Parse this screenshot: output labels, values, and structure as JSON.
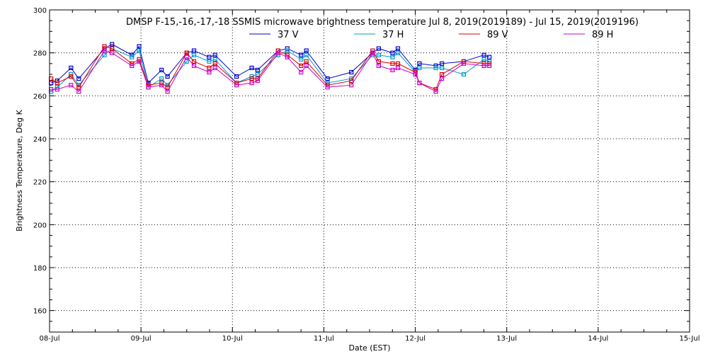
{
  "chart_data": {
    "type": "line",
    "title": "DMSP F-15,-16,-17,-18 SSMIS microwave brightness temperature Jul  8, 2019(2019189) - Jul 15, 2019(2019196)",
    "xlabel": "Date (EST)",
    "ylabel": "Brightness Temperature, Deg K",
    "xlim": [
      "2019-07-08T00:00",
      "2019-07-15T00:00"
    ],
    "ylim": [
      150,
      300
    ],
    "x_tick_labels": [
      "08-Jul",
      "09-Jul",
      "10-Jul",
      "11-Jul",
      "12-Jul",
      "13-Jul",
      "14-Jul",
      "15-Jul"
    ],
    "y_ticks": [
      160,
      180,
      200,
      220,
      240,
      260,
      280,
      300
    ],
    "grid": true,
    "legend_position": "top",
    "series": [
      {
        "name": "37 V",
        "color": "#0000cc",
        "points": [
          [
            "2019-07-08T00:24",
            266
          ],
          [
            "2019-07-08T02:00",
            267
          ],
          [
            "2019-07-08T05:38",
            273
          ],
          [
            "2019-07-08T07:41",
            268
          ],
          [
            "2019-07-08T14:24",
            282
          ],
          [
            "2019-07-08T16:24",
            284
          ],
          [
            "2019-07-08T21:36",
            279
          ],
          [
            "2019-07-08T23:31",
            283
          ],
          [
            "2019-07-09T01:55",
            266
          ],
          [
            "2019-07-09T05:24",
            272
          ],
          [
            "2019-07-09T06:58",
            269
          ],
          [
            "2019-07-09T12:00",
            280
          ],
          [
            "2019-07-09T13:55",
            281
          ],
          [
            "2019-07-09T17:53",
            278
          ],
          [
            "2019-07-09T19:26",
            279
          ],
          [
            "2019-07-10T01:05",
            269
          ],
          [
            "2019-07-10T05:05",
            273
          ],
          [
            "2019-07-10T06:36",
            272
          ],
          [
            "2019-07-10T12:00",
            281
          ],
          [
            "2019-07-10T14:24",
            282
          ],
          [
            "2019-07-10T18:02",
            279
          ],
          [
            "2019-07-10T19:24",
            281
          ],
          [
            "2019-07-11T00:58",
            268
          ],
          [
            "2019-07-11T07:12",
            271
          ],
          [
            "2019-07-11T12:48",
            280
          ],
          [
            "2019-07-11T14:24",
            282
          ],
          [
            "2019-07-11T18:02",
            280
          ],
          [
            "2019-07-11T19:26",
            282
          ],
          [
            "2019-07-12T00:00",
            272
          ],
          [
            "2019-07-12T01:05",
            275
          ],
          [
            "2019-07-12T05:24",
            274
          ],
          [
            "2019-07-12T06:58",
            275
          ],
          [
            "2019-07-12T12:43",
            276
          ],
          [
            "2019-07-12T18:02",
            279
          ],
          [
            "2019-07-12T19:26",
            278
          ]
        ]
      },
      {
        "name": "37 H",
        "color": "#0099cc",
        "points": [
          [
            "2019-07-08T00:24",
            262
          ],
          [
            "2019-07-08T02:00",
            264
          ],
          [
            "2019-07-08T05:38",
            270
          ],
          [
            "2019-07-08T07:41",
            265
          ],
          [
            "2019-07-08T14:24",
            279
          ],
          [
            "2019-07-08T16:24",
            282
          ],
          [
            "2019-07-08T21:36",
            278
          ],
          [
            "2019-07-08T23:31",
            281
          ],
          [
            "2019-07-09T01:55",
            264
          ],
          [
            "2019-07-09T05:24",
            268
          ],
          [
            "2019-07-09T06:58",
            265
          ],
          [
            "2019-07-09T12:00",
            276
          ],
          [
            "2019-07-09T13:55",
            279
          ],
          [
            "2019-07-09T17:53",
            276
          ],
          [
            "2019-07-09T19:26",
            277
          ],
          [
            "2019-07-10T01:05",
            266
          ],
          [
            "2019-07-10T05:05",
            269
          ],
          [
            "2019-07-10T06:36",
            270
          ],
          [
            "2019-07-10T12:00",
            279
          ],
          [
            "2019-07-10T14:24",
            281
          ],
          [
            "2019-07-10T18:02",
            277
          ],
          [
            "2019-07-10T19:24",
            279
          ],
          [
            "2019-07-11T00:58",
            266
          ],
          [
            "2019-07-11T07:12",
            268
          ],
          [
            "2019-07-11T12:48",
            279
          ],
          [
            "2019-07-11T14:24",
            279
          ],
          [
            "2019-07-11T18:02",
            278
          ],
          [
            "2019-07-11T19:26",
            280
          ],
          [
            "2019-07-12T00:00",
            271
          ],
          [
            "2019-07-12T01:05",
            273
          ],
          [
            "2019-07-12T05:24",
            273
          ],
          [
            "2019-07-12T06:58",
            273
          ],
          [
            "2019-07-12T12:43",
            270
          ],
          [
            "2019-07-12T18:02",
            277
          ],
          [
            "2019-07-12T19:26",
            276
          ]
        ]
      },
      {
        "name": "89 V",
        "color": "#dd0000",
        "points": [
          [
            "2019-07-08T00:24",
            268
          ],
          [
            "2019-07-08T02:00",
            266
          ],
          [
            "2019-07-08T05:38",
            269
          ],
          [
            "2019-07-08T07:41",
            264
          ],
          [
            "2019-07-08T14:24",
            283
          ],
          [
            "2019-07-08T16:24",
            282
          ],
          [
            "2019-07-08T21:36",
            275
          ],
          [
            "2019-07-08T23:31",
            277
          ],
          [
            "2019-07-09T01:55",
            265
          ],
          [
            "2019-07-09T05:24",
            266
          ],
          [
            "2019-07-09T06:58",
            264
          ],
          [
            "2019-07-09T12:00",
            280
          ],
          [
            "2019-07-09T13:55",
            276
          ],
          [
            "2019-07-09T17:53",
            273
          ],
          [
            "2019-07-09T19:26",
            275
          ],
          [
            "2019-07-10T01:05",
            266
          ],
          [
            "2019-07-10T05:05",
            268
          ],
          [
            "2019-07-10T06:36",
            268
          ],
          [
            "2019-07-10T12:00",
            281
          ],
          [
            "2019-07-10T14:24",
            279
          ],
          [
            "2019-07-10T18:02",
            274
          ],
          [
            "2019-07-10T19:24",
            276
          ],
          [
            "2019-07-11T00:58",
            265
          ],
          [
            "2019-07-11T07:12",
            267
          ],
          [
            "2019-07-11T12:48",
            281
          ],
          [
            "2019-07-11T14:24",
            276
          ],
          [
            "2019-07-11T18:02",
            275
          ],
          [
            "2019-07-11T19:26",
            275
          ],
          [
            "2019-07-12T00:00",
            271
          ],
          [
            "2019-07-12T01:05",
            266
          ],
          [
            "2019-07-12T05:24",
            263
          ],
          [
            "2019-07-12T06:58",
            270
          ],
          [
            "2019-07-12T12:43",
            276
          ],
          [
            "2019-07-12T18:02",
            275
          ],
          [
            "2019-07-12T19:26",
            275
          ]
        ]
      },
      {
        "name": "89 H",
        "color": "#cc00cc",
        "points": [
          [
            "2019-07-08T00:24",
            263
          ],
          [
            "2019-07-08T02:00",
            263
          ],
          [
            "2019-07-08T05:38",
            265
          ],
          [
            "2019-07-08T07:41",
            262
          ],
          [
            "2019-07-08T14:24",
            281
          ],
          [
            "2019-07-08T16:24",
            280
          ],
          [
            "2019-07-08T21:36",
            274
          ],
          [
            "2019-07-08T23:31",
            276
          ],
          [
            "2019-07-09T01:55",
            264
          ],
          [
            "2019-07-09T05:24",
            265
          ],
          [
            "2019-07-09T06:58",
            262
          ],
          [
            "2019-07-09T12:00",
            278
          ],
          [
            "2019-07-09T13:55",
            274
          ],
          [
            "2019-07-09T17:53",
            271
          ],
          [
            "2019-07-09T19:26",
            273
          ],
          [
            "2019-07-10T01:05",
            265
          ],
          [
            "2019-07-10T05:05",
            266
          ],
          [
            "2019-07-10T06:36",
            267
          ],
          [
            "2019-07-10T12:00",
            280
          ],
          [
            "2019-07-10T14:24",
            278
          ],
          [
            "2019-07-10T18:02",
            271
          ],
          [
            "2019-07-10T19:24",
            274
          ],
          [
            "2019-07-11T00:58",
            264
          ],
          [
            "2019-07-11T07:12",
            265
          ],
          [
            "2019-07-11T12:48",
            280
          ],
          [
            "2019-07-11T14:24",
            274
          ],
          [
            "2019-07-11T18:02",
            272
          ],
          [
            "2019-07-11T19:26",
            273
          ],
          [
            "2019-07-12T00:00",
            270
          ],
          [
            "2019-07-12T01:05",
            266
          ],
          [
            "2019-07-12T05:24",
            262
          ],
          [
            "2019-07-12T06:58",
            268
          ],
          [
            "2019-07-12T12:43",
            275
          ],
          [
            "2019-07-12T18:02",
            274
          ],
          [
            "2019-07-12T19:26",
            274
          ]
        ]
      }
    ]
  }
}
